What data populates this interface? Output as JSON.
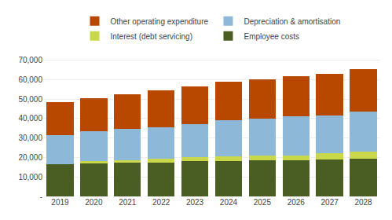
{
  "chart_data": {
    "type": "bar",
    "stacked": true,
    "categories": [
      "2019",
      "2020",
      "2021",
      "2022",
      "2023",
      "2024",
      "2025",
      "2026",
      "2027",
      "2028"
    ],
    "series": [
      {
        "name": "Employee costs",
        "color": "#4a5e23",
        "values": [
          16500,
          17000,
          17500,
          17500,
          18000,
          18000,
          18500,
          18500,
          19000,
          19500
        ]
      },
      {
        "name": "Interest (debt servicing)",
        "color": "#c8d84a",
        "values": [
          0,
          1000,
          1000,
          2000,
          2000,
          2500,
          2500,
          2500,
          3000,
          3500
        ]
      },
      {
        "name": "Depreciation & amortisation",
        "color": "#8db8d8",
        "values": [
          15000,
          15500,
          16000,
          16000,
          17000,
          18500,
          19000,
          20000,
          19500,
          20500
        ]
      },
      {
        "name": "Other operating expenditure",
        "color": "#b84800",
        "values": [
          17000,
          17000,
          18000,
          19000,
          19500,
          20000,
          20000,
          20500,
          21500,
          22000
        ]
      }
    ],
    "ylim": [
      0,
      75000
    ],
    "yticks": [
      {
        "value": 0,
        "label": "-"
      },
      {
        "value": 10000,
        "label": "10,000"
      },
      {
        "value": 20000,
        "label": "20,000"
      },
      {
        "value": 30000,
        "label": "30,000"
      },
      {
        "value": 40000,
        "label": "40,000"
      },
      {
        "value": 50000,
        "label": "50,000"
      },
      {
        "value": 60000,
        "label": "60,000"
      },
      {
        "value": 70000,
        "label": "70,000"
      }
    ],
    "grid": true,
    "legend": "top"
  }
}
